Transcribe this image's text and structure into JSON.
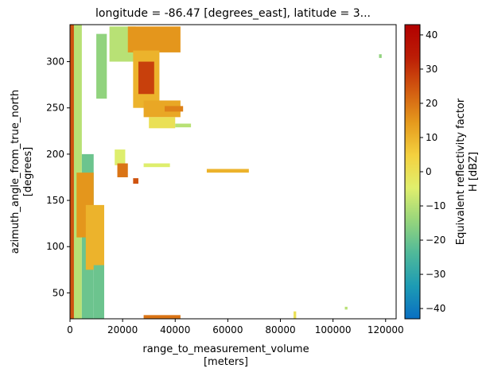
{
  "chart_data": {
    "type": "heatmap",
    "title": "longitude = -86.47 [degrees_east], latitude = 3...",
    "xlabel": "range_to_measurement_volume",
    "xlabel_units": "[meters]",
    "ylabel": "azimuth_angle_from_true_north",
    "ylabel_units": "[degrees]",
    "xlim": [
      0,
      124000
    ],
    "ylim": [
      22,
      340
    ],
    "x_ticks": [
      0,
      20000,
      40000,
      60000,
      80000,
      100000,
      120000
    ],
    "x_tick_labels": [
      "0",
      "20000",
      "40000",
      "60000",
      "80000",
      "100000",
      "120000"
    ],
    "y_ticks": [
      50,
      100,
      150,
      200,
      250,
      300
    ],
    "y_tick_labels": [
      "50",
      "100",
      "150",
      "200",
      "250",
      "300"
    ],
    "colorbar": {
      "label_line1": "Equivalent reflectivity factor",
      "label_line2": "H [dBZ]",
      "vmin": -43,
      "vmax": 43,
      "ticks": [
        -40,
        -30,
        -20,
        -10,
        0,
        10,
        20,
        30,
        40
      ],
      "tick_labels": [
        "−40",
        "−30",
        "−20",
        "−10",
        "0",
        "10",
        "20",
        "30",
        "40"
      ],
      "colormap": "HomeyerRainbow",
      "colors": [
        "#0a6fc2",
        "#1d9bb4",
        "#4fb99a",
        "#96d57c",
        "#e0ef6d",
        "#f4d13f",
        "#e59a1d",
        "#d25a10",
        "#bb1d06",
        "#b20000"
      ]
    },
    "regions": [
      {
        "x": [
          0,
          1500
        ],
        "y": [
          22,
          340
        ],
        "value": 25
      },
      {
        "x": [
          1500,
          4500
        ],
        "y": [
          22,
          340
        ],
        "value": -10
      },
      {
        "x": [
          4500,
          9000
        ],
        "y": [
          22,
          200
        ],
        "value": -20
      },
      {
        "x": [
          2500,
          9000
        ],
        "y": [
          110,
          180
        ],
        "value": 15
      },
      {
        "x": [
          6000,
          13000
        ],
        "y": [
          75,
          145
        ],
        "value": 10
      },
      {
        "x": [
          9000,
          13000
        ],
        "y": [
          22,
          80
        ],
        "value": -20
      },
      {
        "x": [
          10000,
          14000
        ],
        "y": [
          260,
          330
        ],
        "value": -15
      },
      {
        "x": [
          15000,
          25000
        ],
        "y": [
          300,
          338
        ],
        "value": -10
      },
      {
        "x": [
          22000,
          42000
        ],
        "y": [
          310,
          338
        ],
        "value": 15
      },
      {
        "x": [
          24000,
          34000
        ],
        "y": [
          250,
          312
        ],
        "value": 10
      },
      {
        "x": [
          26000,
          32000
        ],
        "y": [
          265,
          300
        ],
        "value": 28
      },
      {
        "x": [
          28000,
          42000
        ],
        "y": [
          240,
          258
        ],
        "value": 12
      },
      {
        "x": [
          36000,
          43000
        ],
        "y": [
          246,
          252
        ],
        "value": 18
      },
      {
        "x": [
          30000,
          40000
        ],
        "y": [
          228,
          240
        ],
        "value": 0
      },
      {
        "x": [
          40000,
          46000
        ],
        "y": [
          229,
          233
        ],
        "value": -10
      },
      {
        "x": [
          17000,
          21000
        ],
        "y": [
          188,
          205
        ],
        "value": -5
      },
      {
        "x": [
          18000,
          22000
        ],
        "y": [
          175,
          190
        ],
        "value": 20
      },
      {
        "x": [
          28000,
          38000
        ],
        "y": [
          186,
          190
        ],
        "value": -5
      },
      {
        "x": [
          52000,
          68000
        ],
        "y": [
          180,
          184
        ],
        "value": 10
      },
      {
        "x": [
          24000,
          26000
        ],
        "y": [
          168,
          174
        ],
        "value": 25
      },
      {
        "x": [
          28000,
          42000
        ],
        "y": [
          22,
          26
        ],
        "value": 20
      },
      {
        "x": [
          85000,
          86000
        ],
        "y": [
          22,
          30
        ],
        "value": 0
      },
      {
        "x": [
          117500,
          118500
        ],
        "y": [
          304,
          308
        ],
        "value": -15
      },
      {
        "x": [
          104500,
          105500
        ],
        "y": [
          32,
          35
        ],
        "value": -10
      }
    ]
  }
}
